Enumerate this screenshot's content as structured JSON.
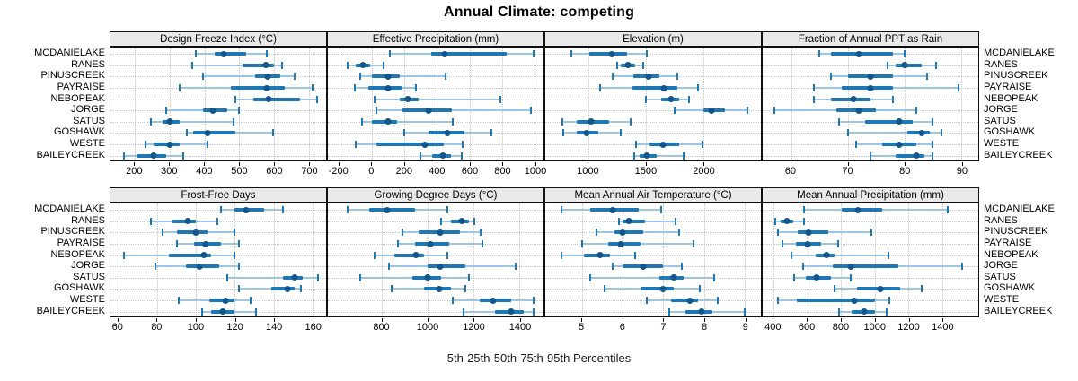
{
  "title": "Annual Climate: competing",
  "caption": "5th-25th-50th-75th-95th Percentiles",
  "colors": {
    "median_dot": "#11568c",
    "iqr_bar": "#1f77b4",
    "whisker": "#9ec6e0",
    "whisker_cap": "#1f77b4",
    "gridline": "#c3c3c3",
    "strip_background": "#e9e9e9",
    "panel_border": "#111111"
  },
  "chart_data": {
    "type": "dotplot",
    "title": "Annual Climate: competing",
    "xlabel": "5th-25th-50th-75th-95th Percentiles",
    "legend_position": "none",
    "grid": "dotted",
    "percentiles": [
      "5th",
      "25th",
      "50th",
      "75th",
      "95th"
    ],
    "stations": [
      "MCDANIELAKE",
      "RANES",
      "PINUSCREEK",
      "PAYRAISE",
      "NEBOPEAK",
      "JORGE",
      "SATUS",
      "GOSHAWK",
      "WESTE",
      "BAILEYCREEK"
    ],
    "panels": [
      {
        "label": "Design Freeze Index (°C)",
        "xlim": [
          130,
          750
        ],
        "ticks": [
          200,
          300,
          400,
          500,
          600,
          700
        ],
        "series": [
          [
            375,
            430,
            455,
            520,
            580
          ],
          [
            365,
            510,
            578,
            600,
            623
          ],
          [
            395,
            545,
            583,
            617,
            660
          ],
          [
            330,
            475,
            580,
            630,
            710
          ],
          [
            490,
            540,
            585,
            675,
            725
          ],
          [
            290,
            395,
            425,
            465,
            500
          ],
          [
            245,
            280,
            300,
            330,
            485
          ],
          [
            350,
            368,
            410,
            490,
            598
          ],
          [
            230,
            255,
            300,
            330,
            410
          ],
          [
            170,
            205,
            255,
            290,
            340
          ]
        ]
      },
      {
        "label": "Effective Precipitation (mm)",
        "xlim": [
          -270,
          1055
        ],
        "ticks": [
          -200,
          0,
          200,
          400,
          600,
          800,
          1000
        ],
        "series": [
          [
            110,
            365,
            450,
            830,
            995
          ],
          [
            -150,
            -100,
            -55,
            -10,
            70
          ],
          [
            -70,
            0,
            100,
            170,
            455
          ],
          [
            -105,
            -20,
            100,
            190,
            270
          ],
          [
            15,
            170,
            220,
            290,
            790
          ],
          [
            30,
            190,
            350,
            490,
            975
          ],
          [
            -60,
            0,
            100,
            155,
            500
          ],
          [
            200,
            350,
            465,
            570,
            735
          ],
          [
            -100,
            30,
            325,
            440,
            560
          ],
          [
            300,
            370,
            435,
            485,
            550
          ]
        ]
      },
      {
        "label": "Elevation (m)",
        "xlim": [
          625,
          2500
        ],
        "ticks": [
          1000,
          1500,
          2000
        ],
        "series": [
          [
            850,
            1005,
            1200,
            1335,
            1510
          ],
          [
            1250,
            1285,
            1345,
            1405,
            1480
          ],
          [
            1210,
            1390,
            1525,
            1620,
            1775
          ],
          [
            1105,
            1380,
            1655,
            1770,
            1950
          ],
          [
            1500,
            1635,
            1720,
            1790,
            1875
          ],
          [
            1750,
            2000,
            2070,
            2185,
            2380
          ],
          [
            775,
            895,
            1025,
            1180,
            1365
          ],
          [
            785,
            895,
            985,
            1085,
            1285
          ],
          [
            1415,
            1535,
            1645,
            1790,
            1990
          ],
          [
            1395,
            1445,
            1510,
            1595,
            1825
          ]
        ]
      },
      {
        "label": "Fraction of Annual PPT as Rain",
        "xlim": [
          55,
          93
        ],
        "ticks": [
          60,
          70,
          80,
          90
        ],
        "series": [
          [
            65,
            67,
            72,
            78,
            80
          ],
          [
            77,
            78.5,
            80,
            83,
            85.5
          ],
          [
            67,
            70,
            74,
            78,
            84
          ],
          [
            64,
            69,
            74,
            78,
            89.5
          ],
          [
            64,
            67,
            71,
            74,
            78
          ],
          [
            57,
            68,
            72,
            75,
            82
          ],
          [
            68.5,
            73,
            79,
            81.5,
            85
          ],
          [
            70,
            80.5,
            83,
            84.5,
            86.5
          ],
          [
            71.5,
            76,
            79,
            82,
            85
          ],
          [
            74,
            78.5,
            82,
            83.5,
            85
          ]
        ]
      },
      {
        "label": "Frost-Free Days",
        "xlim": [
          56,
          167
        ],
        "ticks": [
          60,
          80,
          100,
          120,
          140,
          160
        ],
        "series": [
          [
            113,
            120,
            126,
            135,
            145
          ],
          [
            77,
            88,
            96,
            100,
            111
          ],
          [
            83,
            90,
            100,
            106,
            120
          ],
          [
            90,
            99,
            105,
            113,
            122
          ],
          [
            63,
            86,
            104,
            108,
            120
          ],
          [
            79,
            95,
            102,
            112,
            122
          ],
          [
            116,
            145,
            151,
            155,
            163
          ],
          [
            122,
            139,
            147,
            151,
            154
          ],
          [
            91,
            107,
            115,
            120,
            128
          ],
          [
            103,
            108,
            114,
            120,
            131
          ]
        ]
      },
      {
        "label": "Growing Degree Days (°C)",
        "xlim": [
          565,
          1505
        ],
        "ticks": [
          800,
          1000,
          1200,
          1400
        ],
        "series": [
          [
            650,
            745,
            825,
            945,
            1085
          ],
          [
            1060,
            1100,
            1150,
            1180,
            1205
          ],
          [
            890,
            960,
            1055,
            1140,
            1230
          ],
          [
            870,
            945,
            1010,
            1095,
            1240
          ],
          [
            770,
            855,
            950,
            985,
            1085
          ],
          [
            830,
            1000,
            1055,
            1165,
            1385
          ],
          [
            705,
            935,
            1000,
            1060,
            1180
          ],
          [
            845,
            985,
            1050,
            1100,
            1165
          ],
          [
            1110,
            1225,
            1285,
            1365,
            1460
          ],
          [
            1155,
            1295,
            1365,
            1420,
            1460
          ]
        ]
      },
      {
        "label": "Mean Annual Air Temperature (°C)",
        "xlim": [
          4.1,
          9.4
        ],
        "ticks": [
          5,
          6,
          7,
          8,
          9
        ],
        "series": [
          [
            4.5,
            5.2,
            5.75,
            6.4,
            6.95
          ],
          [
            5.9,
            6.0,
            6.15,
            6.55,
            7.3
          ],
          [
            5.35,
            5.8,
            6.0,
            6.5,
            7.4
          ],
          [
            5.0,
            5.65,
            5.95,
            6.45,
            7.75
          ],
          [
            4.5,
            5.05,
            5.45,
            5.7,
            6.3
          ],
          [
            5.75,
            6.0,
            6.5,
            7.0,
            7.45
          ],
          [
            5.2,
            6.9,
            7.25,
            7.5,
            8.25
          ],
          [
            5.55,
            6.45,
            7.0,
            7.25,
            7.9
          ],
          [
            6.6,
            7.2,
            7.65,
            7.85,
            8.35
          ],
          [
            7.15,
            7.55,
            7.95,
            8.2,
            9.0
          ]
        ]
      },
      {
        "label": "Mean Annual Precipitation (mm)",
        "xlim": [
          335,
          1615
        ],
        "ticks": [
          400,
          600,
          800,
          1000,
          1200,
          1400
        ],
        "series": [
          [
            580,
            805,
            900,
            1045,
            1435
          ],
          [
            410,
            440,
            480,
            517,
            578
          ],
          [
            425,
            545,
            605,
            725,
            980
          ],
          [
            450,
            530,
            600,
            680,
            785
          ],
          [
            505,
            650,
            715,
            760,
            1080
          ],
          [
            575,
            750,
            860,
            1140,
            1520
          ],
          [
            520,
            590,
            655,
            740,
            855
          ],
          [
            760,
            895,
            1035,
            1150,
            1280
          ],
          [
            425,
            540,
            880,
            1000,
            1085
          ],
          [
            790,
            865,
            935,
            1000,
            1070
          ]
        ]
      }
    ]
  }
}
